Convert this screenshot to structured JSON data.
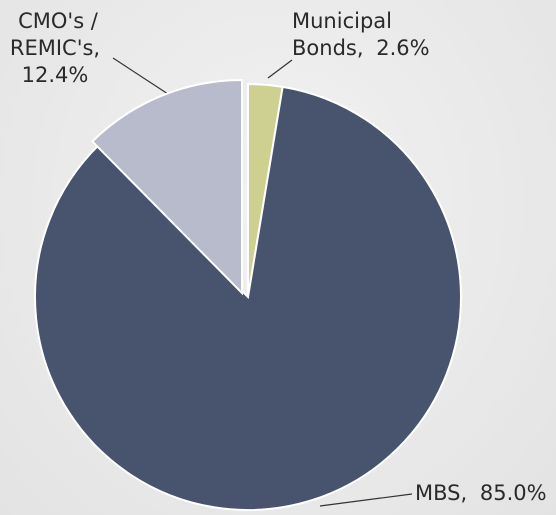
{
  "chart_data": {
    "type": "pie",
    "categories": [
      "Municipal Bonds,",
      "MBS,",
      "CMO's / REMIC's,"
    ],
    "values": [
      2.6,
      85.0,
      12.4
    ],
    "value_labels": [
      "2.6%",
      "85.0%",
      "12.4%"
    ],
    "colors": [
      "#cdd08f",
      "#48546e",
      "#b8bbcc"
    ]
  }
}
